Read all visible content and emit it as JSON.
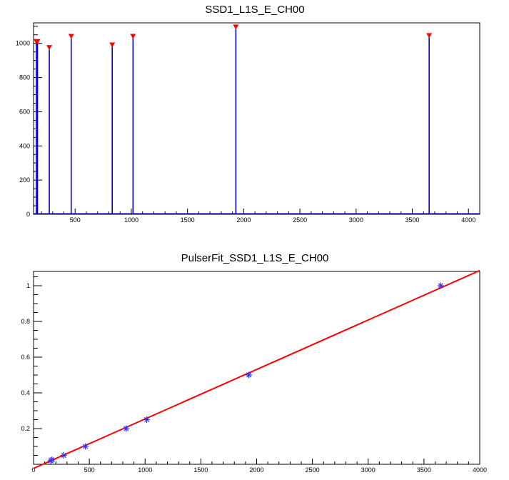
{
  "chart_data": [
    {
      "type": "bar",
      "title": "SSD1_L1S_E_CH00",
      "xlabel": "",
      "ylabel": "",
      "xlim": [
        130,
        4100
      ],
      "ylim": [
        0,
        1120
      ],
      "x_ticks": [
        500,
        1000,
        1500,
        2000,
        2500,
        3000,
        3500,
        4000
      ],
      "y_ticks": [
        0,
        200,
        400,
        600,
        800,
        1000
      ],
      "grid": false,
      "series": [
        {
          "values": [
            [
              155,
              1000
            ],
            [
              165,
              1000
            ],
            [
              270,
              965
            ],
            [
              465,
              1030
            ],
            [
              830,
              980
            ],
            [
              1015,
              1030
            ],
            [
              1930,
              1085
            ],
            [
              3650,
              1035
            ]
          ]
        }
      ],
      "markers": [
        [
          155,
          1000
        ],
        [
          165,
          1000
        ],
        [
          270,
          965
        ],
        [
          465,
          1030
        ],
        [
          830,
          980
        ],
        [
          1015,
          1030
        ],
        [
          1930,
          1085
        ],
        [
          3650,
          1035
        ]
      ],
      "colors": {
        "line": "#0000cc",
        "marker": "#ff0000"
      }
    },
    {
      "type": "scatter",
      "title": "PulserFit_SSD1_L1S_E_CH00",
      "xlabel": "",
      "ylabel": "",
      "xlim": [
        0,
        4000
      ],
      "ylim": [
        0,
        1.08
      ],
      "x_ticks": [
        0,
        500,
        1000,
        1500,
        2000,
        2500,
        3000,
        3500,
        4000
      ],
      "y_ticks": [
        0.2,
        0.4,
        0.6,
        0.8,
        1
      ],
      "y_tick_labels": [
        "0.2",
        "0.4",
        "0.6",
        "0.8",
        "1"
      ],
      "grid": false,
      "series": [
        {
          "x": [
            155,
            165,
            270,
            465,
            830,
            1015,
            1930,
            3650
          ],
          "y": [
            0.02,
            0.025,
            0.05,
            0.1,
            0.2,
            0.25,
            0.5,
            1.0
          ]
        }
      ],
      "fit_line": [
        [
          0,
          -0.023
        ],
        [
          4000,
          1.085
        ]
      ],
      "colors": {
        "points": "#3333ff",
        "fit": "#ff0000"
      }
    }
  ]
}
